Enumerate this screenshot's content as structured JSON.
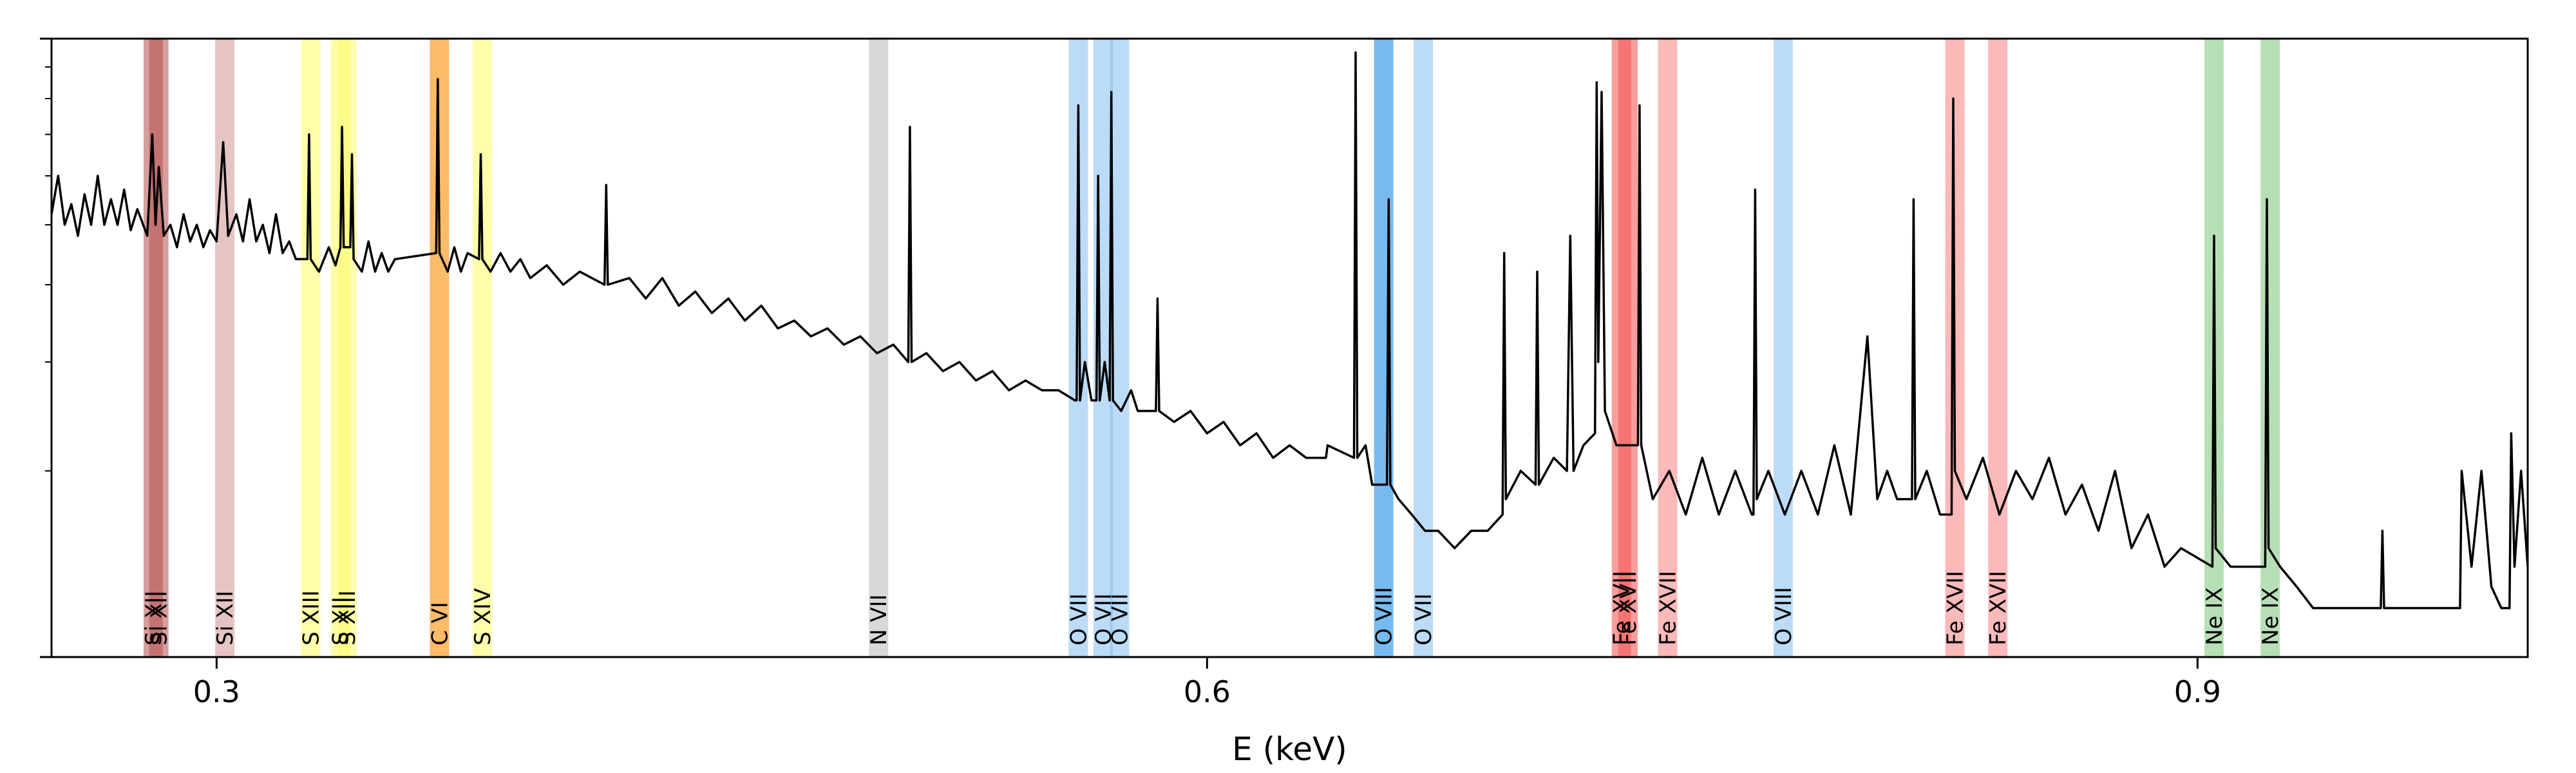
{
  "chart_data": {
    "type": "line",
    "title": "",
    "xlabel": "E (keV)",
    "ylabel": "",
    "xlim": [
      0.25,
      1.0
    ],
    "xticks": [
      0.3,
      0.6,
      0.9
    ],
    "xtick_labels": [
      "0.3",
      "0.6",
      "0.9"
    ],
    "ylim": [
      0.1,
      1.0
    ],
    "yscale": "log",
    "ytick_labels_shown": false,
    "grid": false,
    "series": [
      {
        "name": "",
        "color": "#000000",
        "points": [
          [
            0.25,
            0.52
          ],
          [
            0.252,
            0.6
          ],
          [
            0.254,
            0.5
          ],
          [
            0.256,
            0.54
          ],
          [
            0.258,
            0.48
          ],
          [
            0.26,
            0.56
          ],
          [
            0.262,
            0.5
          ],
          [
            0.264,
            0.6
          ],
          [
            0.266,
            0.5
          ],
          [
            0.268,
            0.55
          ],
          [
            0.27,
            0.5
          ],
          [
            0.272,
            0.57
          ],
          [
            0.274,
            0.49
          ],
          [
            0.276,
            0.53
          ],
          [
            0.279,
            0.48
          ],
          [
            0.2805,
            0.7
          ],
          [
            0.2815,
            0.5
          ],
          [
            0.2825,
            0.62
          ],
          [
            0.284,
            0.48
          ],
          [
            0.286,
            0.5
          ],
          [
            0.288,
            0.46
          ],
          [
            0.29,
            0.52
          ],
          [
            0.292,
            0.47
          ],
          [
            0.294,
            0.5
          ],
          [
            0.296,
            0.46
          ],
          [
            0.298,
            0.49
          ],
          [
            0.3,
            0.47
          ],
          [
            0.302,
            0.68
          ],
          [
            0.3035,
            0.48
          ],
          [
            0.306,
            0.52
          ],
          [
            0.308,
            0.47
          ],
          [
            0.31,
            0.55
          ],
          [
            0.312,
            0.47
          ],
          [
            0.314,
            0.5
          ],
          [
            0.316,
            0.45
          ],
          [
            0.318,
            0.52
          ],
          [
            0.32,
            0.45
          ],
          [
            0.322,
            0.47
          ],
          [
            0.324,
            0.44
          ],
          [
            0.3275,
            0.44
          ],
          [
            0.328,
            0.7
          ],
          [
            0.3285,
            0.44
          ],
          [
            0.331,
            0.42
          ],
          [
            0.334,
            0.46
          ],
          [
            0.336,
            0.43
          ],
          [
            0.3375,
            0.46
          ],
          [
            0.338,
            0.72
          ],
          [
            0.3385,
            0.46
          ],
          [
            0.3405,
            0.46
          ],
          [
            0.341,
            0.65
          ],
          [
            0.3415,
            0.44
          ],
          [
            0.344,
            0.42
          ],
          [
            0.346,
            0.47
          ],
          [
            0.348,
            0.42
          ],
          [
            0.35,
            0.45
          ],
          [
            0.352,
            0.42
          ],
          [
            0.354,
            0.44
          ],
          [
            0.3665,
            0.45
          ],
          [
            0.367,
            0.86
          ],
          [
            0.3675,
            0.45
          ],
          [
            0.37,
            0.42
          ],
          [
            0.372,
            0.46
          ],
          [
            0.374,
            0.42
          ],
          [
            0.376,
            0.45
          ],
          [
            0.3795,
            0.44
          ],
          [
            0.38,
            0.65
          ],
          [
            0.3805,
            0.44
          ],
          [
            0.383,
            0.42
          ],
          [
            0.386,
            0.45
          ],
          [
            0.389,
            0.42
          ],
          [
            0.392,
            0.44
          ],
          [
            0.395,
            0.41
          ],
          [
            0.4,
            0.43
          ],
          [
            0.405,
            0.4
          ],
          [
            0.41,
            0.42
          ],
          [
            0.4175,
            0.4
          ],
          [
            0.418,
            0.58
          ],
          [
            0.4185,
            0.4
          ],
          [
            0.425,
            0.41
          ],
          [
            0.43,
            0.38
          ],
          [
            0.435,
            0.41
          ],
          [
            0.44,
            0.37
          ],
          [
            0.445,
            0.39
          ],
          [
            0.45,
            0.36
          ],
          [
            0.455,
            0.38
          ],
          [
            0.46,
            0.35
          ],
          [
            0.465,
            0.37
          ],
          [
            0.47,
            0.34
          ],
          [
            0.475,
            0.35
          ],
          [
            0.48,
            0.33
          ],
          [
            0.485,
            0.34
          ],
          [
            0.49,
            0.32
          ],
          [
            0.495,
            0.33
          ],
          [
            0.5,
            0.31
          ],
          [
            0.505,
            0.32
          ],
          [
            0.5095,
            0.3
          ],
          [
            0.51,
            0.72
          ],
          [
            0.5105,
            0.3
          ],
          [
            0.515,
            0.31
          ],
          [
            0.52,
            0.29
          ],
          [
            0.525,
            0.3
          ],
          [
            0.53,
            0.28
          ],
          [
            0.535,
            0.29
          ],
          [
            0.54,
            0.27
          ],
          [
            0.545,
            0.28
          ],
          [
            0.55,
            0.27
          ],
          [
            0.555,
            0.27
          ],
          [
            0.56,
            0.26
          ],
          [
            0.5605,
            0.26
          ],
          [
            0.561,
            0.78
          ],
          [
            0.5615,
            0.26
          ],
          [
            0.563,
            0.3
          ],
          [
            0.565,
            0.26
          ],
          [
            0.5665,
            0.26
          ],
          [
            0.567,
            0.6
          ],
          [
            0.5675,
            0.26
          ],
          [
            0.569,
            0.3
          ],
          [
            0.5705,
            0.26
          ],
          [
            0.571,
            0.82
          ],
          [
            0.5715,
            0.26
          ],
          [
            0.574,
            0.25
          ],
          [
            0.577,
            0.27
          ],
          [
            0.579,
            0.25
          ],
          [
            0.5845,
            0.25
          ],
          [
            0.585,
            0.38
          ],
          [
            0.5855,
            0.25
          ],
          [
            0.59,
            0.24
          ],
          [
            0.595,
            0.25
          ],
          [
            0.6,
            0.23
          ],
          [
            0.605,
            0.24
          ],
          [
            0.61,
            0.22
          ],
          [
            0.615,
            0.23
          ],
          [
            0.62,
            0.21
          ],
          [
            0.625,
            0.22
          ],
          [
            0.63,
            0.21
          ],
          [
            0.636,
            0.21
          ],
          [
            0.6365,
            0.22
          ],
          [
            0.6445,
            0.21
          ],
          [
            0.645,
            0.95
          ],
          [
            0.6455,
            0.21
          ],
          [
            0.648,
            0.22
          ],
          [
            0.65,
            0.19
          ],
          [
            0.6545,
            0.19
          ],
          [
            0.655,
            0.55
          ],
          [
            0.6555,
            0.19
          ],
          [
            0.658,
            0.18
          ],
          [
            0.662,
            0.17
          ],
          [
            0.666,
            0.16
          ],
          [
            0.67,
            0.16
          ],
          [
            0.675,
            0.15
          ],
          [
            0.68,
            0.16
          ],
          [
            0.685,
            0.16
          ],
          [
            0.6895,
            0.17
          ],
          [
            0.69,
            0.45
          ],
          [
            0.6905,
            0.18
          ],
          [
            0.695,
            0.2
          ],
          [
            0.6995,
            0.19
          ],
          [
            0.7,
            0.42
          ],
          [
            0.7005,
            0.19
          ],
          [
            0.705,
            0.21
          ],
          [
            0.709,
            0.2
          ],
          [
            0.71,
            0.48
          ],
          [
            0.711,
            0.2
          ],
          [
            0.714,
            0.22
          ],
          [
            0.7175,
            0.23
          ],
          [
            0.718,
            0.85
          ],
          [
            0.7185,
            0.3
          ],
          [
            0.7195,
            0.82
          ],
          [
            0.7205,
            0.25
          ],
          [
            0.724,
            0.22
          ],
          [
            0.7305,
            0.22
          ],
          [
            0.731,
            0.78
          ],
          [
            0.7315,
            0.22
          ],
          [
            0.735,
            0.18
          ],
          [
            0.74,
            0.2
          ],
          [
            0.745,
            0.17
          ],
          [
            0.75,
            0.21
          ],
          [
            0.755,
            0.17
          ],
          [
            0.76,
            0.2
          ],
          [
            0.765,
            0.17
          ],
          [
            0.7655,
            0.17
          ],
          [
            0.766,
            0.57
          ],
          [
            0.7665,
            0.18
          ],
          [
            0.77,
            0.2
          ],
          [
            0.775,
            0.17
          ],
          [
            0.78,
            0.2
          ],
          [
            0.785,
            0.17
          ],
          [
            0.79,
            0.22
          ],
          [
            0.795,
            0.17
          ],
          [
            0.8,
            0.33
          ],
          [
            0.803,
            0.18
          ],
          [
            0.806,
            0.2
          ],
          [
            0.809,
            0.18
          ],
          [
            0.8135,
            0.18
          ],
          [
            0.814,
            0.55
          ],
          [
            0.8145,
            0.18
          ],
          [
            0.818,
            0.2
          ],
          [
            0.822,
            0.17
          ],
          [
            0.8255,
            0.17
          ],
          [
            0.826,
            0.8
          ],
          [
            0.8265,
            0.2
          ],
          [
            0.83,
            0.18
          ],
          [
            0.835,
            0.21
          ],
          [
            0.84,
            0.17
          ],
          [
            0.845,
            0.2
          ],
          [
            0.85,
            0.18
          ],
          [
            0.855,
            0.21
          ],
          [
            0.86,
            0.17
          ],
          [
            0.865,
            0.19
          ],
          [
            0.87,
            0.16
          ],
          [
            0.875,
            0.2
          ],
          [
            0.88,
            0.15
          ],
          [
            0.885,
            0.17
          ],
          [
            0.89,
            0.14
          ],
          [
            0.895,
            0.15
          ],
          [
            0.9045,
            0.14
          ],
          [
            0.905,
            0.48
          ],
          [
            0.9055,
            0.15
          ],
          [
            0.91,
            0.14
          ],
          [
            0.915,
            0.14
          ],
          [
            0.9205,
            0.14
          ],
          [
            0.921,
            0.55
          ],
          [
            0.9215,
            0.15
          ],
          [
            0.925,
            0.14
          ],
          [
            0.93,
            0.13
          ],
          [
            0.935,
            0.12
          ],
          [
            0.94,
            0.12
          ],
          [
            0.945,
            0.12
          ],
          [
            0.95,
            0.12
          ],
          [
            0.9555,
            0.12
          ],
          [
            0.956,
            0.16
          ],
          [
            0.9565,
            0.12
          ],
          [
            0.96,
            0.12
          ],
          [
            0.965,
            0.12
          ],
          [
            0.97,
            0.12
          ],
          [
            0.975,
            0.12
          ],
          [
            0.9795,
            0.12
          ],
          [
            0.98,
            0.2
          ],
          [
            0.983,
            0.14
          ],
          [
            0.986,
            0.2
          ],
          [
            0.989,
            0.13
          ],
          [
            0.992,
            0.12
          ],
          [
            0.9945,
            0.12
          ],
          [
            0.995,
            0.23
          ],
          [
            0.996,
            0.14
          ],
          [
            0.998,
            0.2
          ],
          [
            1.0,
            0.14
          ]
        ]
      }
    ],
    "bands": [
      {
        "label": "Si XII",
        "center": 0.2808,
        "color": "#b5504d",
        "opacity": 0.55
      },
      {
        "label": "Si XII",
        "center": 0.2825,
        "color": "#b5504d",
        "opacity": 0.55
      },
      {
        "label": "Si XII",
        "center": 0.3025,
        "color": "#c98b89",
        "opacity": 0.5
      },
      {
        "label": "S XIII",
        "center": 0.3285,
        "color": "#fbfb72",
        "opacity": 0.6
      },
      {
        "label": "S XII",
        "center": 0.3375,
        "color": "#fbfb72",
        "opacity": 0.6
      },
      {
        "label": "S XIII",
        "center": 0.3395,
        "color": "#fbfb72",
        "opacity": 0.6
      },
      {
        "label": "C VI",
        "center": 0.3675,
        "color": "#fba437",
        "opacity": 0.75
      },
      {
        "label": "S XIV",
        "center": 0.3805,
        "color": "#fbfb72",
        "opacity": 0.6
      },
      {
        "label": "N VII",
        "center": 0.5005,
        "color": "#b8b8b8",
        "opacity": 0.55
      },
      {
        "label": "O VII",
        "center": 0.561,
        "color": "#84bef0",
        "opacity": 0.55
      },
      {
        "label": "O VII",
        "center": 0.5685,
        "color": "#84bef0",
        "opacity": 0.55
      },
      {
        "label": "O VII",
        "center": 0.5735,
        "color": "#84bef0",
        "opacity": 0.55
      },
      {
        "label": "O VIII",
        "center": 0.6535,
        "color": "#4aa3ea",
        "opacity": 0.75
      },
      {
        "label": "O VII",
        "center": 0.6655,
        "color": "#84bef0",
        "opacity": 0.55
      },
      {
        "label": "Fe XVII",
        "center": 0.7255,
        "color": "#f55a5a",
        "opacity": 0.6
      },
      {
        "label": "Fe XVII",
        "center": 0.7275,
        "color": "#f55a5a",
        "opacity": 0.6
      },
      {
        "label": "Fe XVII",
        "center": 0.7395,
        "color": "#f77f7f",
        "opacity": 0.55
      },
      {
        "label": "O VIII",
        "center": 0.7745,
        "color": "#84bef0",
        "opacity": 0.55
      },
      {
        "label": "Fe XVII",
        "center": 0.8265,
        "color": "#f77f7f",
        "opacity": 0.55
      },
      {
        "label": "Fe XVII",
        "center": 0.8395,
        "color": "#f77f7f",
        "opacity": 0.55
      },
      {
        "label": "Ne IX",
        "center": 0.905,
        "color": "#7cc47a",
        "opacity": 0.55
      },
      {
        "label": "Ne IX",
        "center": 0.922,
        "color": "#7cc47a",
        "opacity": 0.55
      }
    ]
  }
}
